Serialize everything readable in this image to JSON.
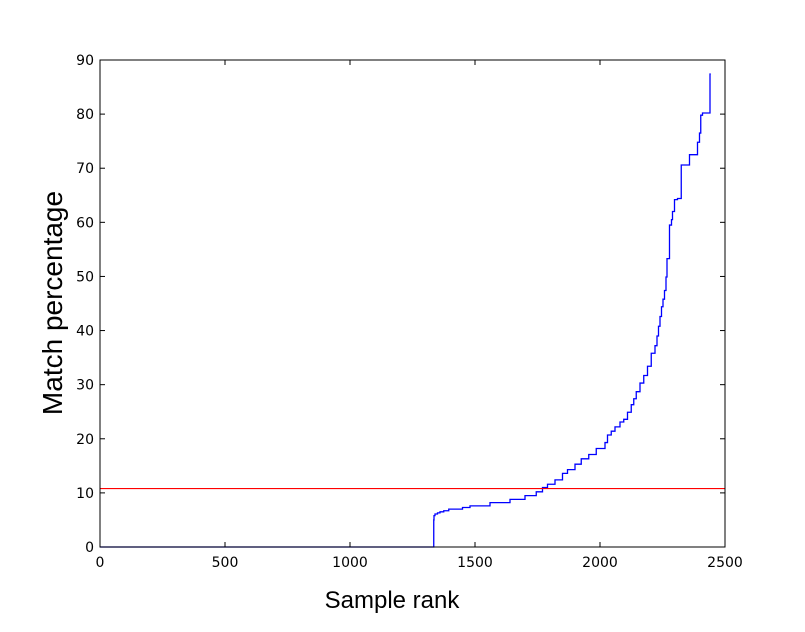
{
  "chart_data": {
    "type": "line",
    "title": "",
    "xlabel": "Sample rank",
    "ylabel": "Match percentage",
    "xlim": [
      0,
      2500
    ],
    "ylim": [
      0,
      90
    ],
    "xticks": [
      0,
      500,
      1000,
      1500,
      2000,
      2500
    ],
    "yticks": [
      0,
      10,
      20,
      30,
      40,
      50,
      60,
      70,
      80,
      90
    ],
    "grid": false,
    "legend": "none",
    "series": [
      {
        "color": "#0000ff",
        "style": "steps",
        "x": [
          0,
          1335,
          1336,
          1340,
          1350,
          1360,
          1375,
          1395,
          1450,
          1480,
          1560,
          1640,
          1700,
          1745,
          1770,
          1790,
          1820,
          1850,
          1870,
          1900,
          1925,
          1955,
          1985,
          2020,
          2030,
          2045,
          2060,
          2080,
          2095,
          2110,
          2125,
          2135,
          2145,
          2160,
          2175,
          2190,
          2205,
          2220,
          2228,
          2234,
          2240,
          2246,
          2252,
          2258,
          2264,
          2268,
          2278,
          2286,
          2290,
          2298,
          2310,
          2325,
          2358,
          2390,
          2398,
          2403,
          2410,
          2440,
          2443
        ],
        "y": [
          0,
          5,
          5.8,
          6.1,
          6.3,
          6.5,
          6.7,
          7,
          7.3,
          7.6,
          8.2,
          8.8,
          9.5,
          10.2,
          11,
          11.6,
          12.4,
          13.6,
          14.3,
          15.3,
          16.3,
          17.1,
          18.2,
          19.3,
          20.7,
          21.4,
          22.2,
          23.1,
          23.6,
          24.9,
          26.3,
          27.4,
          28.7,
          30.3,
          31.7,
          33.4,
          35.8,
          37.2,
          39,
          40.8,
          42.6,
          44.4,
          45.8,
          47.4,
          49.9,
          53.3,
          59.5,
          60.5,
          62,
          64.2,
          64.4,
          70.6,
          72.5,
          74.8,
          76.5,
          79.8,
          80.2,
          87.4,
          87.4
        ]
      },
      {
        "color": "#ff0000",
        "style": "hline",
        "y": 10.8
      }
    ]
  }
}
